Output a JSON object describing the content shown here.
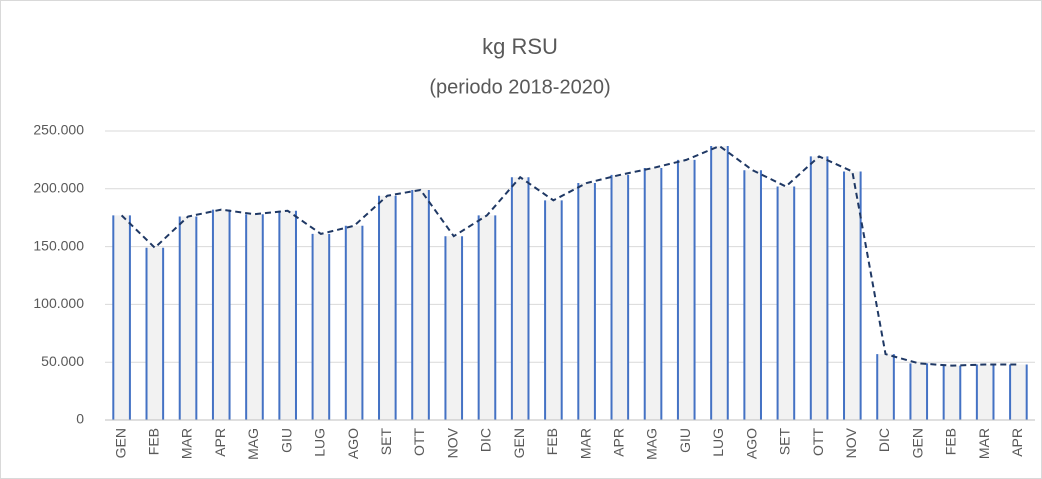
{
  "chart_data": {
    "type": "bar",
    "title": "kg RSU",
    "subtitle": "(periodo  2018-2020)",
    "categories": [
      "GEN",
      "FEB",
      "MAR",
      "APR",
      "MAG",
      "GIU",
      "LUG",
      "AGO",
      "SET",
      "OTT",
      "NOV",
      "DIC",
      "GEN",
      "FEB",
      "MAR",
      "APR",
      "MAG",
      "GIU",
      "LUG",
      "AGO",
      "SET",
      "OTT",
      "NOV",
      "DIC",
      "GEN",
      "FEB",
      "MAR",
      "APR"
    ],
    "values": [
      177000,
      149000,
      176000,
      182000,
      178000,
      181000,
      161000,
      168000,
      194000,
      199000,
      159000,
      177000,
      210000,
      190000,
      205000,
      212000,
      218000,
      225000,
      237000,
      216000,
      202000,
      228000,
      215000,
      57000,
      49000,
      47000,
      48000,
      48000
    ],
    "color": "#f2f2f2",
    "edge_color": "#4472c4",
    "line_color": "#1f3864",
    "trend_line": true,
    "ylim": [
      0,
      250000
    ],
    "yticks": [
      0,
      {
        "value": 50000,
        "label": "50.000"
      },
      {
        "value": 100000,
        "label": "100.000"
      },
      {
        "value": 150000,
        "label": "150.000"
      },
      {
        "value": 200000,
        "label": "200.000"
      },
      {
        "value": 250000,
        "label": "250.000"
      }
    ],
    "grid": true
  }
}
